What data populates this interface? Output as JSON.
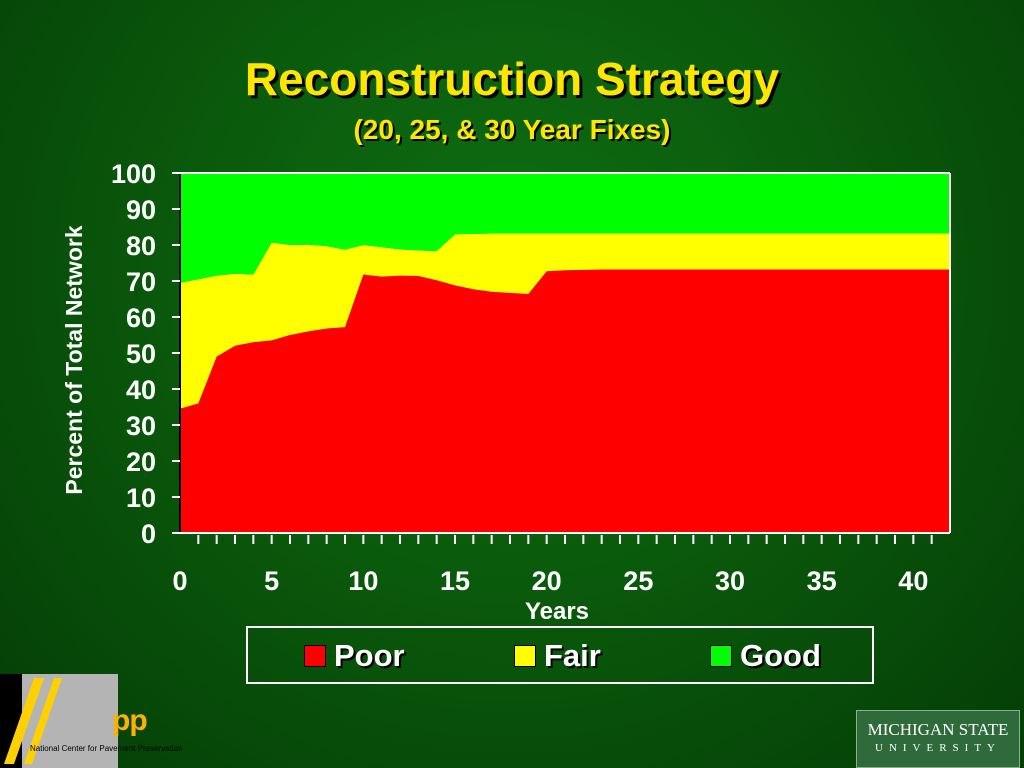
{
  "slide": {
    "title": "Reconstruction Strategy",
    "subtitle": "(20, 25, & 30 Year Fixes)",
    "background_color": "#0a5a0c",
    "title_color": "#ffe600"
  },
  "chart_data": {
    "type": "area",
    "stacked": true,
    "title": "Reconstruction Strategy",
    "subtitle": "(20, 25, & 30 Year Fixes)",
    "xlabel": "Years",
    "ylabel": "Percent of Total Network",
    "xlim": [
      0,
      42
    ],
    "ylim": [
      0,
      100
    ],
    "x_ticks": [
      0,
      5,
      10,
      15,
      20,
      25,
      30,
      35,
      40
    ],
    "y_ticks": [
      0,
      10,
      20,
      30,
      40,
      50,
      60,
      70,
      80,
      90,
      100
    ],
    "legend_position": "bottom",
    "x": [
      0,
      1,
      2,
      3,
      4,
      5,
      6,
      7,
      8,
      9,
      10,
      11,
      12,
      13,
      14,
      15,
      16,
      17,
      18,
      19,
      20,
      21,
      22,
      23,
      24,
      25,
      26,
      27,
      28,
      29,
      30,
      31,
      32,
      33,
      34,
      35,
      36,
      37,
      38,
      39,
      40,
      41,
      42
    ],
    "series": [
      {
        "name": "Poor",
        "color": "#ff0000",
        "values": [
          34.5,
          36,
          49,
          52,
          53,
          53.5,
          55,
          56,
          56.8,
          57.2,
          71.8,
          71.2,
          71.5,
          71.4,
          70.2,
          68.8,
          67.7,
          67.0,
          66.7,
          66.4,
          72.7,
          73.0,
          73.1,
          73.2,
          73.2,
          73.2,
          73.2,
          73.2,
          73.2,
          73.2,
          73.2,
          73.2,
          73.2,
          73.2,
          73.2,
          73.2,
          73.2,
          73.2,
          73.2,
          73.2,
          73.2,
          73.2,
          73.2
        ]
      },
      {
        "name": "Fair",
        "color": "#ffff00",
        "values": [
          35,
          34.5,
          22.5,
          20,
          18.8,
          27.2,
          25,
          24.1,
          22.9,
          21.5,
          8.2,
          8.2,
          7.3,
          7.1,
          8.1,
          14.2,
          15.4,
          16.2,
          16.5,
          16.8,
          10.5,
          10.2,
          10.1,
          10.0,
          10.0,
          10.0,
          10.0,
          10.0,
          10.0,
          10.0,
          10.0,
          10.0,
          10.0,
          10.0,
          10.0,
          10.0,
          10.0,
          10.0,
          10.0,
          10.0,
          10.0,
          10.0,
          10.0
        ]
      },
      {
        "name": "Good",
        "color": "#00ff00",
        "values": [
          30.5,
          29.5,
          28.5,
          28,
          28.2,
          19.3,
          20,
          19.9,
          20.3,
          21.3,
          20,
          20.6,
          21.2,
          21.5,
          21.7,
          17.0,
          16.9,
          16.8,
          16.8,
          16.8,
          16.8,
          16.8,
          16.8,
          16.8,
          16.8,
          16.8,
          16.8,
          16.8,
          16.8,
          16.8,
          16.8,
          16.8,
          16.8,
          16.8,
          16.8,
          16.8,
          16.8,
          16.8,
          16.8,
          16.8,
          16.8,
          16.8,
          16.8
        ]
      }
    ]
  },
  "legend": {
    "items": [
      {
        "name": "Poor",
        "color": "#ff0000"
      },
      {
        "name": "Fair",
        "color": "#ffff00"
      },
      {
        "name": "Good",
        "color": "#00ff00"
      }
    ]
  },
  "logos": {
    "ncpp": {
      "letters": "pp",
      "caption": "National Center for Pavement Preservation"
    },
    "msu": {
      "line1": "MICHIGAN STATE",
      "line2": "UNIVERSITY"
    }
  }
}
